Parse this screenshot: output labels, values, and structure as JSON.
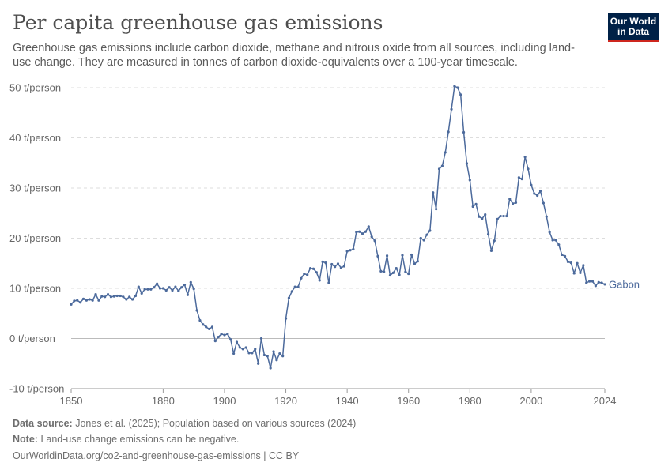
{
  "header": {
    "title": "Per capita greenhouse gas emissions",
    "subtitle": "Greenhouse gas emissions include carbon dioxide, methane and nitrous oxide from all sources, including land-use change. They are measured in tonnes of carbon dioxide-equivalents over a 100-year timescale.",
    "logo_line1": "Our World",
    "logo_line2": "in Data"
  },
  "footer": {
    "source_label": "Data source:",
    "source_text": "Jones et al. (2025); Population based on various sources (2024)",
    "note_label": "Note:",
    "note_text": "Land-use change emissions can be negative.",
    "link_text": "OurWorldinData.org/co2-and-greenhouse-gas-emissions | CC BY"
  },
  "colors": {
    "series": "#4c6a9c",
    "grid": "#dddddd",
    "zero_line": "#bbbbbb",
    "axis_text": "#666666",
    "logo_bg": "#002147",
    "logo_accent": "#ce261e"
  },
  "chart_data": {
    "type": "line",
    "title": "Per capita greenhouse gas emissions",
    "xlabel": "",
    "ylabel": "",
    "unit": "t/person",
    "xlim": [
      1850,
      2024
    ],
    "ylim": [
      -10,
      50
    ],
    "x_ticks": [
      1850,
      1880,
      1900,
      1920,
      1940,
      1960,
      1980,
      2000,
      2024
    ],
    "y_ticks": [
      -10,
      0,
      10,
      20,
      30,
      40,
      50
    ],
    "y_tick_labels": [
      "-10 t/person",
      "0 t/person",
      "10 t/person",
      "20 t/person",
      "30 t/person",
      "40 t/person",
      "50 t/person"
    ],
    "grid": "horizontal dashed",
    "legend": "end-label right",
    "series": [
      {
        "name": "Gabon",
        "x": [
          1850,
          1851,
          1852,
          1853,
          1854,
          1855,
          1856,
          1857,
          1858,
          1859,
          1860,
          1861,
          1862,
          1863,
          1864,
          1865,
          1866,
          1867,
          1868,
          1869,
          1870,
          1871,
          1872,
          1873,
          1874,
          1875,
          1876,
          1877,
          1878,
          1879,
          1880,
          1881,
          1882,
          1883,
          1884,
          1885,
          1886,
          1887,
          1888,
          1889,
          1890,
          1891,
          1892,
          1893,
          1894,
          1895,
          1896,
          1897,
          1898,
          1899,
          1900,
          1901,
          1902,
          1903,
          1904,
          1905,
          1906,
          1907,
          1908,
          1909,
          1910,
          1911,
          1912,
          1913,
          1914,
          1915,
          1916,
          1917,
          1918,
          1919,
          1920,
          1921,
          1922,
          1923,
          1924,
          1925,
          1926,
          1927,
          1928,
          1929,
          1930,
          1931,
          1932,
          1933,
          1934,
          1935,
          1936,
          1937,
          1938,
          1939,
          1940,
          1941,
          1942,
          1943,
          1944,
          1945,
          1946,
          1947,
          1948,
          1949,
          1950,
          1951,
          1952,
          1953,
          1954,
          1955,
          1956,
          1957,
          1958,
          1959,
          1960,
          1961,
          1962,
          1963,
          1964,
          1965,
          1966,
          1967,
          1968,
          1969,
          1970,
          1971,
          1972,
          1973,
          1974,
          1975,
          1976,
          1977,
          1978,
          1979,
          1980,
          1981,
          1982,
          1983,
          1984,
          1985,
          1986,
          1987,
          1988,
          1989,
          1990,
          1991,
          1992,
          1993,
          1994,
          1995,
          1996,
          1997,
          1998,
          1999,
          2000,
          2001,
          2002,
          2003,
          2004,
          2005,
          2006,
          2007,
          2008,
          2009,
          2010,
          2011,
          2012,
          2013,
          2014,
          2015,
          2016,
          2017,
          2018,
          2019,
          2020,
          2021,
          2022,
          2023,
          2024
        ],
        "values": [
          6.8,
          7.5,
          7.6,
          7.2,
          7.9,
          7.6,
          7.8,
          7.6,
          8.8,
          7.6,
          8.4,
          8.3,
          8.8,
          8.3,
          8.4,
          8.5,
          8.5,
          8.3,
          7.8,
          8.3,
          7.8,
          8.5,
          10.3,
          9.0,
          9.8,
          9.8,
          9.8,
          10.2,
          10.9,
          10.0,
          10.0,
          9.6,
          10.2,
          9.6,
          10.3,
          9.5,
          10.2,
          10.7,
          8.7,
          11.2,
          9.9,
          5.6,
          3.6,
          2.8,
          2.3,
          1.9,
          2.3,
          -0.5,
          0.3,
          0.9,
          0.7,
          0.9,
          -0.2,
          -3.0,
          -0.7,
          -1.8,
          -2.1,
          -1.8,
          -2.9,
          -2.9,
          -2.1,
          -5.0,
          0.0,
          -3.3,
          -3.5,
          -5.9,
          -2.6,
          -4.3,
          -3.0,
          -3.5,
          4.0,
          8.1,
          9.4,
          10.3,
          10.3,
          12.0,
          12.9,
          12.7,
          14.0,
          13.9,
          13.2,
          11.6,
          15.3,
          15.1,
          11.1,
          14.8,
          14.3,
          14.9,
          14.1,
          14.4,
          17.4,
          17.6,
          17.8,
          21.2,
          21.3,
          20.9,
          21.3,
          22.3,
          20.3,
          19.5,
          16.4,
          13.4,
          13.3,
          16.5,
          12.6,
          13.1,
          14.0,
          12.7,
          16.6,
          13.3,
          12.9,
          16.7,
          14.9,
          15.4,
          20.0,
          19.6,
          20.7,
          21.5,
          29.1,
          25.8,
          33.8,
          34.4,
          37.1,
          41.2,
          45.7,
          50.3,
          50.0,
          48.6,
          41.1,
          34.9,
          31.6,
          26.3,
          26.8,
          24.3,
          23.9,
          24.7,
          20.8,
          17.5,
          19.5,
          23.8,
          24.4,
          24.4,
          24.4,
          27.8,
          26.9,
          27.1,
          32.1,
          31.8,
          36.2,
          33.8,
          30.6,
          28.9,
          28.5,
          29.4,
          27.0,
          24.3,
          21.2,
          19.6,
          19.6,
          18.7,
          16.7,
          16.4,
          15.3,
          15.1,
          13.0,
          15.0,
          13.1,
          14.6,
          11.1,
          11.4,
          11.4,
          10.5,
          11.2,
          11.1,
          10.8
        ]
      }
    ]
  }
}
